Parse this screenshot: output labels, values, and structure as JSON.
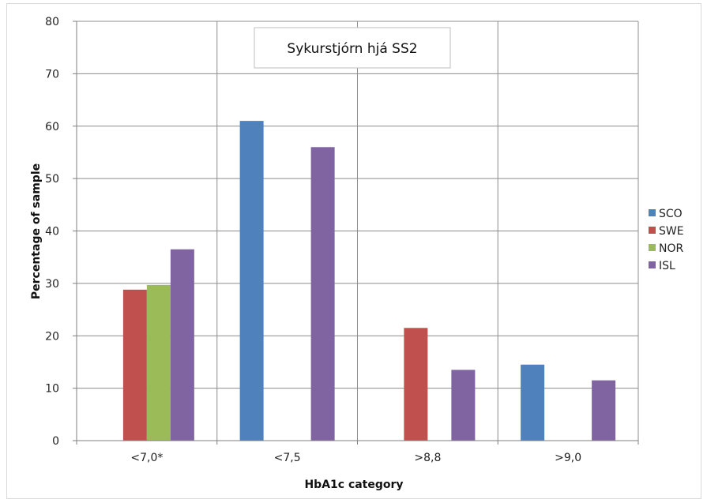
{
  "chart_data": {
    "type": "bar",
    "title": "Sykurstjórn hjá SS2",
    "xlabel": "HbA1c category",
    "ylabel": "Percentage of sample",
    "categories": [
      "<7,0*",
      "<7,5",
      ">8,8",
      ">9,0"
    ],
    "ylim": [
      0,
      80
    ],
    "yticks": [
      0,
      10,
      20,
      30,
      40,
      50,
      60,
      70,
      80
    ],
    "grid": true,
    "legend_position": "right",
    "series": [
      {
        "name": "SCO",
        "color": "#4f81bd",
        "values": [
          null,
          61,
          null,
          14.5
        ]
      },
      {
        "name": "SWE",
        "color": "#c0504d",
        "values": [
          28.8,
          null,
          21.5,
          null
        ]
      },
      {
        "name": "NOR",
        "color": "#9bbb59",
        "values": [
          29.7,
          null,
          null,
          null
        ]
      },
      {
        "name": "ISL",
        "color": "#8064a2",
        "values": [
          36.5,
          56,
          13.5,
          11.5
        ]
      }
    ]
  }
}
